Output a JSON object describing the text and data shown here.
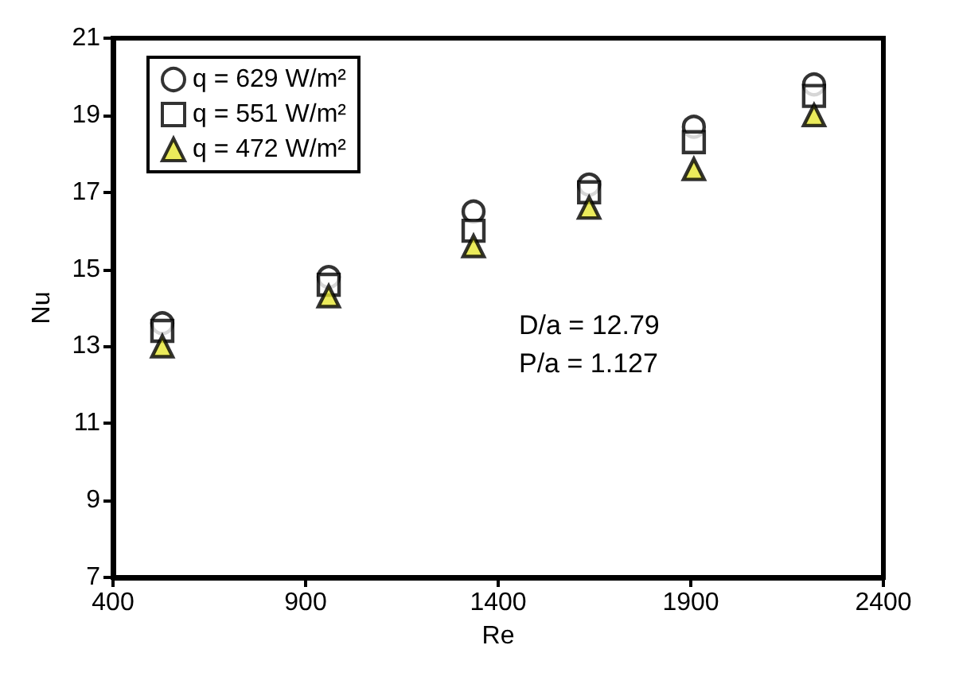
{
  "chart_data": {
    "type": "scatter",
    "xlabel": "Re",
    "ylabel": "Nu",
    "xlim": [
      400,
      2400
    ],
    "xticks": [
      400,
      900,
      1400,
      1900,
      2400
    ],
    "ylim": [
      7,
      21
    ],
    "yticks": [
      7,
      9,
      11,
      13,
      15,
      17,
      19,
      21
    ],
    "grid": false,
    "legend": "top left",
    "x": [
      528,
      960,
      1336,
      1636,
      1908,
      2220
    ],
    "series": [
      {
        "name": "q = 629 W/m²",
        "color": "#ffffff",
        "marker": "circle",
        "values": [
          13.6,
          14.8,
          16.5,
          17.2,
          18.7,
          19.8
        ]
      },
      {
        "name": "q = 551 W/m²",
        "color": "#ffffff",
        "marker": "square",
        "values": [
          13.4,
          14.6,
          16.0,
          17.0,
          18.3,
          19.5
        ]
      },
      {
        "name": "q = 472 W/m²",
        "color": "#e6e632",
        "marker": "triangle",
        "values": [
          13.0,
          14.3,
          15.6,
          16.6,
          17.6,
          19.0
        ]
      }
    ],
    "annotations": [
      "D/a = 12.79",
      "P/a = 1.127"
    ]
  }
}
